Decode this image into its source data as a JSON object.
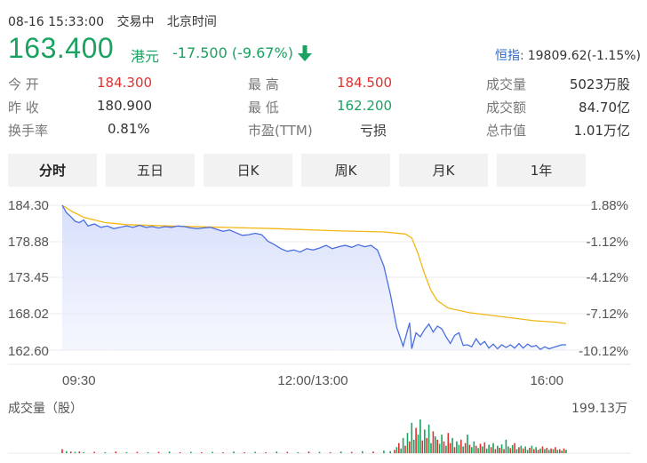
{
  "status": {
    "datetime": "08-16 15:33:00",
    "trading": "交易中",
    "timezone": "北京时间"
  },
  "quote": {
    "price": "163.400",
    "currency": "港元",
    "change": "-17.500 (-9.67%)",
    "index_label": "恒指:",
    "index_value": "19809.62(-1.15%)"
  },
  "stats": {
    "open_label": "今 开",
    "open": "184.300",
    "high_label": "最 高",
    "high": "184.500",
    "volume_label": "成交量",
    "volume": "5023万股",
    "prev_label": "昨 收",
    "prev": "180.900",
    "low_label": "最 低",
    "low": "162.200",
    "turnover_label": "成交额",
    "turnover": "84.70亿",
    "turnover_rate_label": "换手率",
    "turnover_rate": "0.81%",
    "pe_label": "市盈(TTM)",
    "pe": "亏损",
    "mcap_label": "总市值",
    "mcap": "1.01万亿"
  },
  "tabs": [
    "分时",
    "五日",
    "日K",
    "周K",
    "月K",
    "1年"
  ],
  "colors": {
    "up": "#e0312f",
    "down": "#1aa260",
    "price_line": "#4a6fe0",
    "avg_line": "#f2b716",
    "index_link": "#2a66c9"
  },
  "chart_data": {
    "type": "line",
    "price_ticks": [
      "184.30",
      "178.88",
      "173.45",
      "168.02",
      "162.60"
    ],
    "pct_ticks": [
      "1.88%",
      "-1.12%",
      "-4.12%",
      "-7.12%",
      "-10.12%"
    ],
    "time_ticks": [
      "09:30",
      "12:00/13:00",
      "16:00"
    ],
    "ylim": [
      162.6,
      184.3
    ],
    "volume_label": "成交量（股）",
    "volume_max": "199.13万",
    "series": [
      {
        "name": "price",
        "x": [
          0,
          4,
          8,
          12,
          16,
          20,
          24,
          30,
          36,
          42,
          48,
          54,
          60,
          66,
          72,
          78,
          84,
          90,
          96,
          102,
          108,
          114,
          120,
          126,
          132,
          138,
          144,
          150,
          156,
          162,
          168,
          174,
          180,
          186,
          192,
          198,
          204,
          210,
          216,
          222,
          228,
          234,
          240,
          246,
          252,
          258,
          264,
          270,
          276,
          282,
          288,
          294,
          300,
          306,
          312,
          318,
          324,
          326,
          330,
          334,
          338,
          342,
          346,
          350,
          354,
          358,
          362,
          366,
          370,
          374,
          378,
          382,
          386,
          390,
          394,
          398,
          402,
          406,
          410,
          414,
          418,
          422,
          426,
          430,
          434,
          438,
          442,
          446,
          450,
          454,
          458,
          462,
          466,
          470
        ],
        "values": [
          184.3,
          183.2,
          182.6,
          181.9,
          181.7,
          182.1,
          181.2,
          181.5,
          181.0,
          181.2,
          180.8,
          181.0,
          181.2,
          181.0,
          181.3,
          181.0,
          181.1,
          180.9,
          181.1,
          181.0,
          181.2,
          181.1,
          180.9,
          180.8,
          180.9,
          181.0,
          180.7,
          180.4,
          180.6,
          180.2,
          179.8,
          179.9,
          180.1,
          179.9,
          178.9,
          178.4,
          177.8,
          177.4,
          177.6,
          177.3,
          177.8,
          177.6,
          177.9,
          178.3,
          177.8,
          178.1,
          178.3,
          178.0,
          178.4,
          178.1,
          178.3,
          177.6,
          175.2,
          171.0,
          166.0,
          163.2,
          166.7,
          162.8,
          165.2,
          164.6,
          165.7,
          166.5,
          165.3,
          166.2,
          165.8,
          164.6,
          163.6,
          164.8,
          165.2,
          163.3,
          163.4,
          163.1,
          164.3,
          163.4,
          163.9,
          162.9,
          163.5,
          162.8,
          163.4,
          163.0,
          163.4,
          162.9,
          163.6,
          162.9,
          163.5,
          163.1,
          163.3,
          162.7,
          163.1,
          162.8,
          163.0,
          163.2,
          163.4,
          163.4
        ]
      },
      {
        "name": "average",
        "x": [
          0,
          10,
          20,
          40,
          60,
          100,
          150,
          200,
          250,
          300,
          320,
          326,
          332,
          338,
          344,
          350,
          360,
          380,
          400,
          420,
          440,
          460,
          470
        ],
        "values": [
          184.3,
          183.3,
          182.5,
          181.7,
          181.4,
          181.2,
          181.0,
          180.8,
          180.5,
          180.3,
          180.0,
          179.4,
          177.0,
          174.0,
          171.5,
          170.0,
          168.9,
          168.2,
          167.8,
          167.4,
          167.0,
          166.8,
          166.6
        ]
      }
    ],
    "volume": {
      "x": [
        0,
        4,
        8,
        12,
        16,
        20,
        30,
        40,
        50,
        60,
        70,
        80,
        90,
        100,
        110,
        120,
        130,
        140,
        150,
        160,
        170,
        180,
        190,
        200,
        210,
        220,
        230,
        240,
        250,
        260,
        270,
        280,
        290,
        300,
        306,
        310,
        312,
        314,
        316,
        318,
        320,
        322,
        324,
        326,
        328,
        330,
        332,
        334,
        336,
        338,
        340,
        342,
        344,
        346,
        348,
        350,
        352,
        354,
        356,
        358,
        360,
        362,
        364,
        366,
        368,
        370,
        372,
        374,
        376,
        378,
        380,
        382,
        384,
        386,
        388,
        390,
        392,
        394,
        396,
        398,
        400,
        402,
        404,
        406,
        408,
        410,
        412,
        414,
        416,
        418,
        420,
        422,
        424,
        426,
        428,
        430,
        432,
        434,
        436,
        438,
        440,
        442,
        444,
        446,
        448,
        450,
        452,
        454,
        456,
        458,
        460,
        462,
        464,
        466,
        468,
        470
      ],
      "values": [
        12,
        6,
        5,
        4,
        5,
        3,
        4,
        3,
        5,
        3,
        4,
        3,
        4,
        5,
        3,
        4,
        3,
        4,
        3,
        5,
        3,
        4,
        3,
        5,
        4,
        3,
        5,
        4,
        3,
        5,
        4,
        6,
        5,
        8,
        6,
        10,
        18,
        30,
        14,
        45,
        22,
        60,
        35,
        90,
        40,
        75,
        55,
        100,
        38,
        70,
        45,
        85,
        30,
        65,
        50,
        40,
        28,
        55,
        35,
        22,
        60,
        30,
        45,
        18,
        35,
        25,
        40,
        20,
        30,
        55,
        25,
        18,
        35,
        22,
        15,
        28,
        20,
        32,
        14,
        25,
        18,
        30,
        12,
        22,
        16,
        26,
        12,
        40,
        20,
        15,
        24,
        30,
        12,
        18,
        22,
        14,
        20,
        10,
        16,
        22,
        12,
        18,
        10,
        14,
        20,
        12,
        16,
        10,
        14,
        12,
        18,
        10,
        12,
        8,
        14,
        10
      ],
      "up": [
        1,
        0,
        1,
        0,
        1,
        0,
        1,
        0,
        1,
        0,
        1,
        0,
        1,
        0,
        1,
        0,
        1,
        0,
        1,
        0,
        1,
        0,
        1,
        0,
        1,
        0,
        1,
        0,
        1,
        0,
        1,
        0,
        1,
        0,
        0,
        1,
        0,
        1,
        0,
        0,
        1,
        0,
        1,
        0,
        0,
        1,
        0,
        0,
        1,
        0,
        1,
        0,
        0,
        1,
        0,
        1,
        0,
        0,
        1,
        0,
        1,
        1,
        0,
        1,
        0,
        0,
        1,
        0,
        1,
        0,
        1,
        0,
        0,
        1,
        0,
        1,
        0,
        1,
        0,
        0,
        1,
        0,
        1,
        0,
        1,
        0,
        1,
        0,
        0,
        1,
        0,
        1,
        0,
        1,
        0,
        1,
        0,
        0,
        1,
        0,
        1,
        0,
        1,
        0,
        1,
        0,
        1,
        0,
        1,
        0,
        1,
        0,
        1,
        0,
        1,
        0
      ]
    }
  }
}
